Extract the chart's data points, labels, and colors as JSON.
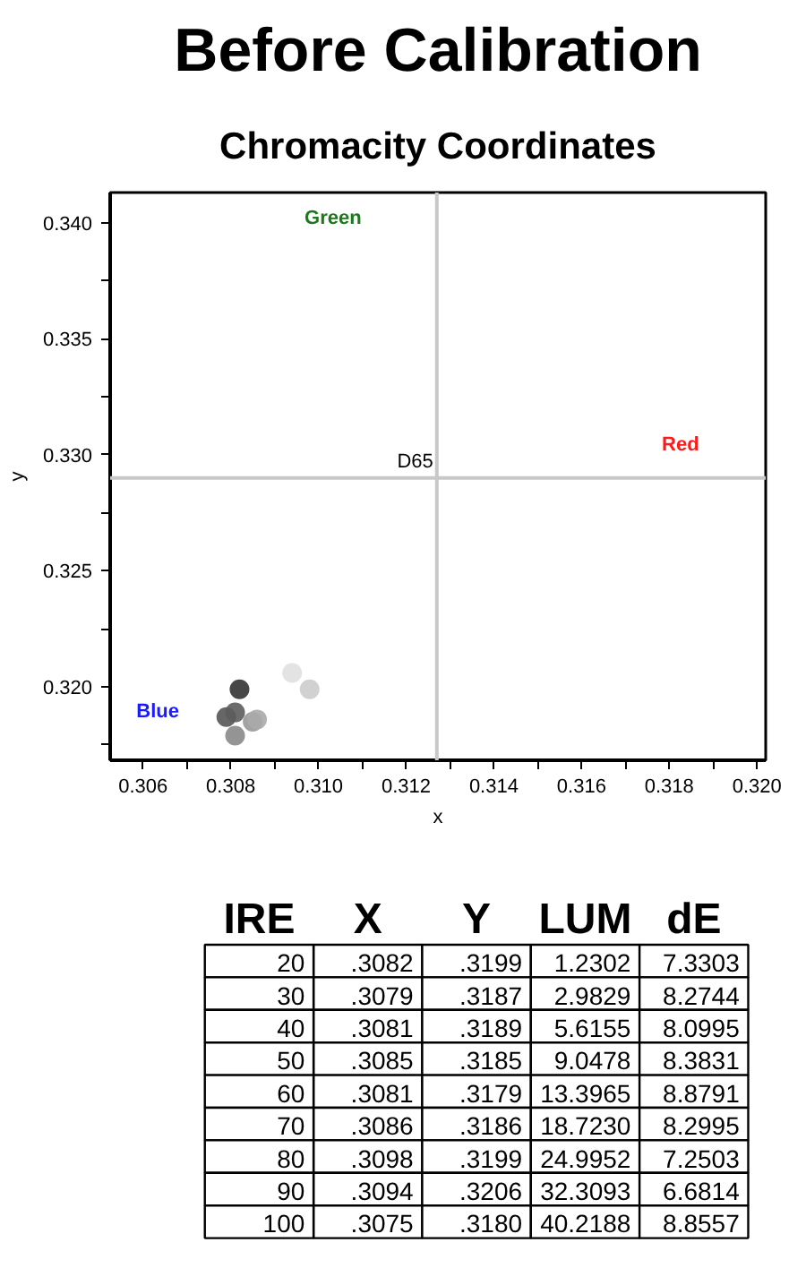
{
  "chart_data": [
    {
      "type": "scatter",
      "title": "Before Calibration",
      "subtitle": "Chromacity Coordinates",
      "xlabel": "x",
      "ylabel": "y",
      "x": [
        0.3082,
        0.3079,
        0.3081,
        0.3085,
        0.3081,
        0.3086,
        0.3098,
        0.3094,
        null
      ],
      "values": [
        0.3199,
        0.3187,
        0.3189,
        0.3185,
        0.3179,
        0.3186,
        0.3199,
        0.3206,
        null
      ],
      "colors": [
        "#333333",
        "#555555",
        "#5c5c5c",
        "#999999",
        "#888888",
        "#aaaaaa",
        "#cccccc",
        "#e0e0e0",
        "#f4f4f4"
      ],
      "marker": "circle",
      "grid": false,
      "xlim": [
        0.30525,
        0.3202
      ],
      "ylim": [
        0.31684,
        0.3413
      ],
      "xticks": [
        0.306,
        {
          "value": 0.307,
          "label": null
        },
        0.308,
        {
          "value": 0.309,
          "label": null
        },
        {
          "value": 0.31,
          "label": "0.310"
        },
        {
          "value": 0.311,
          "label": null
        },
        0.312,
        {
          "value": 0.313,
          "label": null
        },
        0.314,
        {
          "value": 0.315,
          "label": null
        },
        0.316,
        {
          "value": 0.317,
          "label": null
        },
        0.318,
        {
          "value": 0.319,
          "label": null
        },
        {
          "value": 0.32,
          "label": "0.320"
        }
      ],
      "yticks": [
        {
          "value": 0.3175,
          "label": null
        },
        {
          "value": 0.32,
          "label": "0.320"
        },
        {
          "value": 0.3225,
          "label": null
        },
        0.325,
        {
          "value": 0.3275,
          "label": null
        },
        {
          "value": 0.33,
          "label": "0.330"
        },
        {
          "value": 0.3325,
          "label": null
        },
        0.335,
        {
          "value": 0.3375,
          "label": null
        },
        {
          "value": 0.34,
          "label": "0.340"
        }
      ],
      "ref_lines": [
        {
          "axis": "x",
          "value": 0.3127,
          "label": null,
          "color": "#c8c8c8"
        },
        {
          "axis": "y",
          "value": 0.329,
          "label": null,
          "color": "#c8c8c8"
        }
      ],
      "annotations": [
        {
          "text": "D65",
          "x": 0.3127,
          "y": 0.329
        },
        "Green",
        "Red",
        "Blue"
      ]
    },
    {
      "type": "heatmap",
      "ylabel": "IRE",
      "categories": [
        "X",
        "Y",
        "LUM",
        "dE"
      ],
      "y_categories": [
        "20",
        "30",
        "40",
        "50",
        "60",
        "70",
        "80",
        "90",
        "100"
      ],
      "cells": [
        [
          null,
          null,
          null,
          null
        ],
        [
          null,
          null,
          null,
          null
        ],
        [
          null,
          null,
          null,
          null
        ],
        [
          null,
          null,
          null,
          null
        ],
        [
          null,
          null,
          null,
          null
        ],
        [
          null,
          null,
          null,
          null
        ],
        [
          null,
          null,
          null,
          null
        ],
        [
          null,
          null,
          null,
          null
        ],
        [
          null,
          null,
          null,
          null
        ]
      ],
      "cell_labels": [
        [
          ".3082",
          ".3199",
          "1.2302",
          "7.3303"
        ],
        [
          ".3079",
          ".3187",
          "2.9829",
          "8.2744"
        ],
        [
          ".3081",
          ".3189",
          "5.6155",
          "8.0995"
        ],
        [
          ".3085",
          ".3185",
          "9.0478",
          "8.3831"
        ],
        [
          ".3081",
          ".3179",
          "13.3965",
          "8.8791"
        ],
        [
          ".3086",
          ".3186",
          "18.7230",
          "8.2995"
        ],
        [
          ".3098",
          ".3199",
          "24.9952",
          "7.2503"
        ],
        [
          ".3094",
          ".3206",
          "32.3093",
          "6.6814"
        ],
        [
          ".3075",
          ".3180",
          "40.2188",
          "8.8557"
        ]
      ]
    }
  ]
}
